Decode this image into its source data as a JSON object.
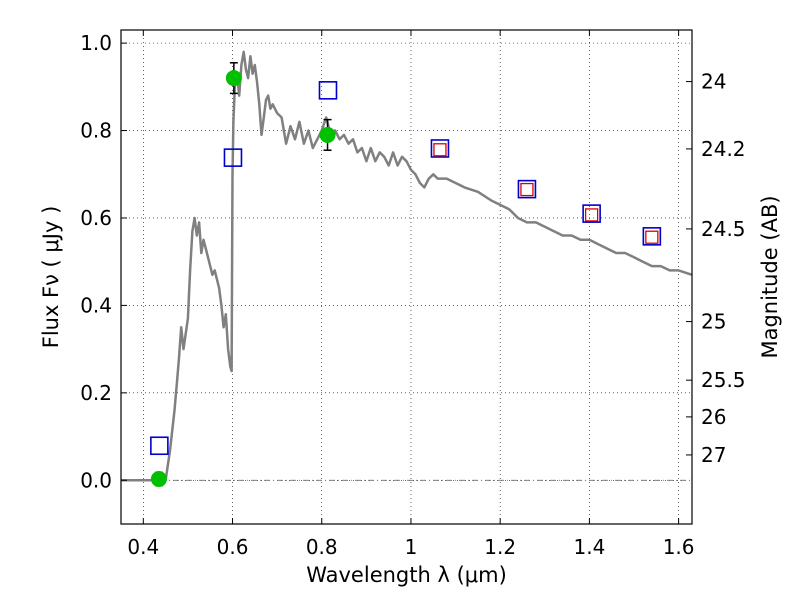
{
  "chart_data": {
    "type": "scatter",
    "xlabel": "Wavelength  λ (μm)",
    "ylabel": "Flux  Fν  ( μJy )",
    "y2label": "Magnitude (AB)",
    "xlim": [
      0.35,
      1.63
    ],
    "ylim": [
      -0.1,
      1.03
    ],
    "xticks": [
      0.4,
      0.6,
      0.8,
      1.0,
      1.2,
      1.4,
      1.6
    ],
    "xtick_labels": [
      "0.4",
      "0.6",
      "0.8",
      "1",
      "1.2",
      "1.4",
      "1.6"
    ],
    "yticks": [
      0.0,
      0.2,
      0.4,
      0.6,
      0.8,
      1.0
    ],
    "ytick_labels": [
      "0.0",
      "0.2",
      "0.4",
      "0.6",
      "0.8",
      "1.0"
    ],
    "y2ticks": [
      {
        "flux": 0.912,
        "label": "24"
      },
      {
        "flux": 0.758,
        "label": "24.2"
      },
      {
        "flux": 0.575,
        "label": "24.5"
      },
      {
        "flux": 0.363,
        "label": "25"
      },
      {
        "flux": 0.229,
        "label": "25.5"
      },
      {
        "flux": 0.145,
        "label": "26"
      },
      {
        "flux": 0.058,
        "label": "27"
      }
    ],
    "grid": true,
    "zero_line": true,
    "series": [
      {
        "kind": "line",
        "color": "#808080",
        "x": [
          0.35,
          0.45,
          0.46,
          0.47,
          0.475,
          0.48,
          0.485,
          0.49,
          0.5,
          0.505,
          0.51,
          0.515,
          0.52,
          0.525,
          0.53,
          0.535,
          0.54,
          0.545,
          0.55,
          0.555,
          0.56,
          0.565,
          0.57,
          0.575,
          0.58,
          0.585,
          0.59,
          0.595,
          0.598,
          0.6,
          0.602,
          0.605,
          0.61,
          0.615,
          0.62,
          0.625,
          0.63,
          0.635,
          0.64,
          0.645,
          0.65,
          0.655,
          0.66,
          0.665,
          0.67,
          0.675,
          0.68,
          0.685,
          0.69,
          0.7,
          0.71,
          0.72,
          0.73,
          0.74,
          0.75,
          0.76,
          0.77,
          0.78,
          0.79,
          0.8,
          0.81,
          0.82,
          0.83,
          0.84,
          0.85,
          0.86,
          0.87,
          0.88,
          0.89,
          0.9,
          0.91,
          0.92,
          0.93,
          0.94,
          0.95,
          0.96,
          0.97,
          0.98,
          0.99,
          1.0,
          1.01,
          1.02,
          1.03,
          1.04,
          1.05,
          1.06,
          1.08,
          1.1,
          1.12,
          1.15,
          1.18,
          1.2,
          1.22,
          1.24,
          1.26,
          1.28,
          1.3,
          1.32,
          1.34,
          1.36,
          1.38,
          1.4,
          1.42,
          1.44,
          1.46,
          1.48,
          1.5,
          1.52,
          1.54,
          1.56,
          1.58,
          1.6,
          1.63
        ],
        "y": [
          0.0,
          0.0,
          0.07,
          0.16,
          0.22,
          0.28,
          0.35,
          0.3,
          0.37,
          0.48,
          0.57,
          0.6,
          0.56,
          0.59,
          0.52,
          0.55,
          0.53,
          0.51,
          0.49,
          0.47,
          0.48,
          0.46,
          0.44,
          0.4,
          0.35,
          0.38,
          0.3,
          0.26,
          0.25,
          0.7,
          0.82,
          0.9,
          0.93,
          0.88,
          0.95,
          0.98,
          0.94,
          0.92,
          0.97,
          0.93,
          0.95,
          0.91,
          0.86,
          0.79,
          0.83,
          0.87,
          0.88,
          0.85,
          0.86,
          0.84,
          0.83,
          0.77,
          0.81,
          0.78,
          0.82,
          0.77,
          0.8,
          0.76,
          0.78,
          0.8,
          0.83,
          0.79,
          0.8,
          0.78,
          0.79,
          0.77,
          0.78,
          0.75,
          0.76,
          0.73,
          0.76,
          0.73,
          0.75,
          0.74,
          0.72,
          0.75,
          0.72,
          0.74,
          0.73,
          0.71,
          0.7,
          0.68,
          0.67,
          0.69,
          0.7,
          0.69,
          0.69,
          0.68,
          0.67,
          0.66,
          0.64,
          0.63,
          0.62,
          0.6,
          0.59,
          0.59,
          0.58,
          0.57,
          0.56,
          0.56,
          0.55,
          0.55,
          0.54,
          0.53,
          0.52,
          0.52,
          0.51,
          0.5,
          0.49,
          0.49,
          0.48,
          0.48,
          0.47
        ]
      },
      {
        "kind": "errorbar",
        "marker": "circle",
        "color": "#00c000",
        "points": [
          {
            "x": 0.435,
            "y": 0.003,
            "err": 0.015
          },
          {
            "x": 0.603,
            "y": 0.92,
            "err": 0.035
          },
          {
            "x": 0.813,
            "y": 0.79,
            "err": 0.035
          }
        ]
      },
      {
        "kind": "scatter",
        "marker": "square-open",
        "color": "#0000cc",
        "points": [
          {
            "x": 0.436,
            "y": 0.079
          },
          {
            "x": 0.601,
            "y": 0.738
          },
          {
            "x": 0.814,
            "y": 0.892
          },
          {
            "x": 1.065,
            "y": 0.759
          },
          {
            "x": 1.26,
            "y": 0.666
          },
          {
            "x": 1.405,
            "y": 0.61
          },
          {
            "x": 1.54,
            "y": 0.558
          }
        ]
      },
      {
        "kind": "scatter",
        "marker": "square-open-small",
        "color": "#dd0000",
        "points": [
          {
            "x": 1.065,
            "y": 0.756
          },
          {
            "x": 1.26,
            "y": 0.665
          },
          {
            "x": 1.405,
            "y": 0.607
          },
          {
            "x": 1.54,
            "y": 0.556
          }
        ]
      }
    ]
  }
}
